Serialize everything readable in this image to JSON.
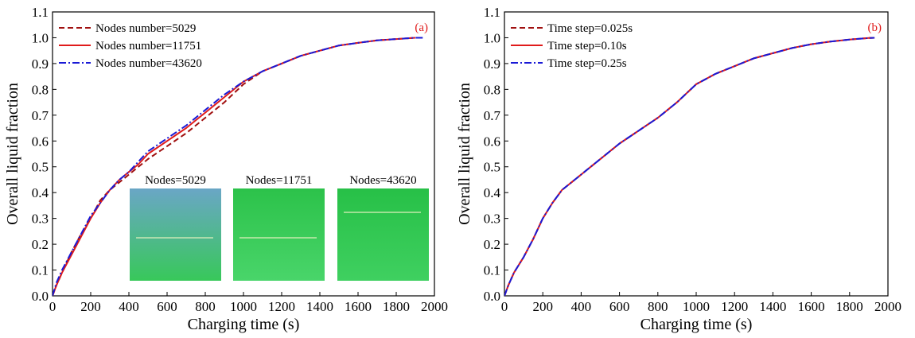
{
  "chart_data": [
    {
      "type": "line",
      "panel_label": "(a)",
      "xlabel": "Charging time (s)",
      "ylabel": "Overall liquid fraction",
      "xlim": [
        0,
        2000
      ],
      "ylim": [
        0.0,
        1.1
      ],
      "xticks": [
        "0",
        "200",
        "400",
        "600",
        "800",
        "1000",
        "1200",
        "1400",
        "1600",
        "1800",
        "2000"
      ],
      "yticks": [
        "0.0",
        "0.1",
        "0.2",
        "0.3",
        "0.4",
        "0.5",
        "0.6",
        "0.7",
        "0.8",
        "0.9",
        "1.0",
        "1.1"
      ],
      "legend_position": "top-left",
      "series": [
        {
          "name": "Nodes number=5029",
          "color": "#a01010",
          "dash": "dash",
          "x": [
            0,
            20,
            50,
            100,
            150,
            200,
            250,
            300,
            350,
            400,
            450,
            500,
            600,
            700,
            800,
            900,
            1000,
            1100,
            1200,
            1300,
            1400,
            1500,
            1600,
            1700,
            1800,
            1900
          ],
          "y": [
            0.0,
            0.04,
            0.09,
            0.17,
            0.24,
            0.3,
            0.37,
            0.41,
            0.44,
            0.47,
            0.5,
            0.53,
            0.58,
            0.63,
            0.69,
            0.75,
            0.82,
            0.87,
            0.9,
            0.93,
            0.95,
            0.97,
            0.98,
            0.99,
            0.995,
            1.0
          ]
        },
        {
          "name": "Nodes number=11751",
          "color": "#e01b1b",
          "dash": "solid",
          "x": [
            0,
            20,
            50,
            100,
            150,
            200,
            250,
            270,
            300,
            350,
            400,
            450,
            500,
            600,
            700,
            800,
            900,
            1000,
            1100,
            1200,
            1300,
            1400,
            1500,
            1600,
            1700,
            1800,
            1900
          ],
          "y": [
            0.0,
            0.04,
            0.09,
            0.16,
            0.23,
            0.3,
            0.36,
            0.38,
            0.41,
            0.45,
            0.48,
            0.51,
            0.55,
            0.6,
            0.65,
            0.71,
            0.77,
            0.83,
            0.87,
            0.9,
            0.93,
            0.95,
            0.97,
            0.98,
            0.99,
            0.995,
            1.0
          ]
        },
        {
          "name": "Nodes number=43620",
          "color": "#1a1ad6",
          "dash": "dashdot",
          "x": [
            0,
            20,
            50,
            100,
            150,
            200,
            250,
            270,
            300,
            350,
            400,
            450,
            500,
            600,
            700,
            800,
            900,
            1000,
            1100,
            1200,
            1300,
            1400,
            1500,
            1600,
            1700,
            1800,
            1900,
            1950
          ],
          "y": [
            0.0,
            0.05,
            0.1,
            0.17,
            0.24,
            0.31,
            0.36,
            0.38,
            0.41,
            0.45,
            0.48,
            0.52,
            0.56,
            0.61,
            0.66,
            0.72,
            0.78,
            0.83,
            0.87,
            0.9,
            0.93,
            0.95,
            0.97,
            0.98,
            0.99,
            0.995,
            1.0,
            1.0
          ]
        }
      ],
      "insets": [
        {
          "title": "Nodes=5029",
          "color_top": "#6aa6c6",
          "color_bottom": "#38c85a"
        },
        {
          "title": "Nodes=11751",
          "color_top": "#2cc24a",
          "color_bottom": "#49d56a"
        },
        {
          "title": "Nodes=43620",
          "color_top": "#27c047",
          "color_bottom": "#3fd060"
        }
      ]
    },
    {
      "type": "line",
      "panel_label": "(b)",
      "xlabel": "Charging time (s)",
      "ylabel": "Overall liquid fraction",
      "xlim": [
        0,
        2000
      ],
      "ylim": [
        0.0,
        1.1
      ],
      "xticks": [
        "0",
        "200",
        "400",
        "600",
        "800",
        "1000",
        "1200",
        "1400",
        "1600",
        "1800",
        "2000"
      ],
      "yticks": [
        "0.0",
        "0.1",
        "0.2",
        "0.3",
        "0.4",
        "0.5",
        "0.6",
        "0.7",
        "0.8",
        "0.9",
        "1.0",
        "1.1"
      ],
      "legend_position": "top-left",
      "series": [
        {
          "name": "Time step=0.025s",
          "color": "#a01010",
          "dash": "dash",
          "x": [
            0,
            20,
            50,
            100,
            150,
            200,
            250,
            300,
            350,
            400,
            450,
            500,
            600,
            700,
            800,
            900,
            1000,
            1100,
            1200,
            1300,
            1400,
            1500,
            1600,
            1700,
            1800,
            1900,
            1930
          ],
          "y": [
            0.0,
            0.04,
            0.09,
            0.15,
            0.22,
            0.3,
            0.36,
            0.41,
            0.44,
            0.47,
            0.5,
            0.53,
            0.59,
            0.64,
            0.69,
            0.75,
            0.82,
            0.86,
            0.89,
            0.92,
            0.94,
            0.96,
            0.975,
            0.985,
            0.993,
            0.999,
            1.0
          ]
        },
        {
          "name": "Time step=0.10s",
          "color": "#e01b1b",
          "dash": "solid",
          "x": [
            0,
            20,
            50,
            100,
            150,
            200,
            250,
            300,
            350,
            400,
            450,
            500,
            600,
            700,
            800,
            900,
            1000,
            1100,
            1200,
            1300,
            1400,
            1500,
            1600,
            1700,
            1800,
            1900,
            1930
          ],
          "y": [
            0.0,
            0.04,
            0.09,
            0.15,
            0.22,
            0.3,
            0.36,
            0.41,
            0.44,
            0.47,
            0.5,
            0.53,
            0.59,
            0.64,
            0.69,
            0.75,
            0.82,
            0.86,
            0.89,
            0.92,
            0.94,
            0.96,
            0.975,
            0.985,
            0.993,
            0.999,
            1.0
          ]
        },
        {
          "name": "Time step=0.25s",
          "color": "#1a1ad6",
          "dash": "dashdot",
          "x": [
            0,
            20,
            50,
            100,
            150,
            200,
            250,
            300,
            350,
            400,
            450,
            500,
            600,
            700,
            800,
            900,
            1000,
            1100,
            1200,
            1300,
            1400,
            1500,
            1600,
            1700,
            1800,
            1900,
            1930
          ],
          "y": [
            0.0,
            0.04,
            0.09,
            0.15,
            0.22,
            0.3,
            0.36,
            0.41,
            0.44,
            0.47,
            0.5,
            0.53,
            0.59,
            0.64,
            0.69,
            0.75,
            0.82,
            0.86,
            0.89,
            0.92,
            0.94,
            0.96,
            0.975,
            0.985,
            0.993,
            0.999,
            1.0
          ]
        }
      ]
    }
  ]
}
